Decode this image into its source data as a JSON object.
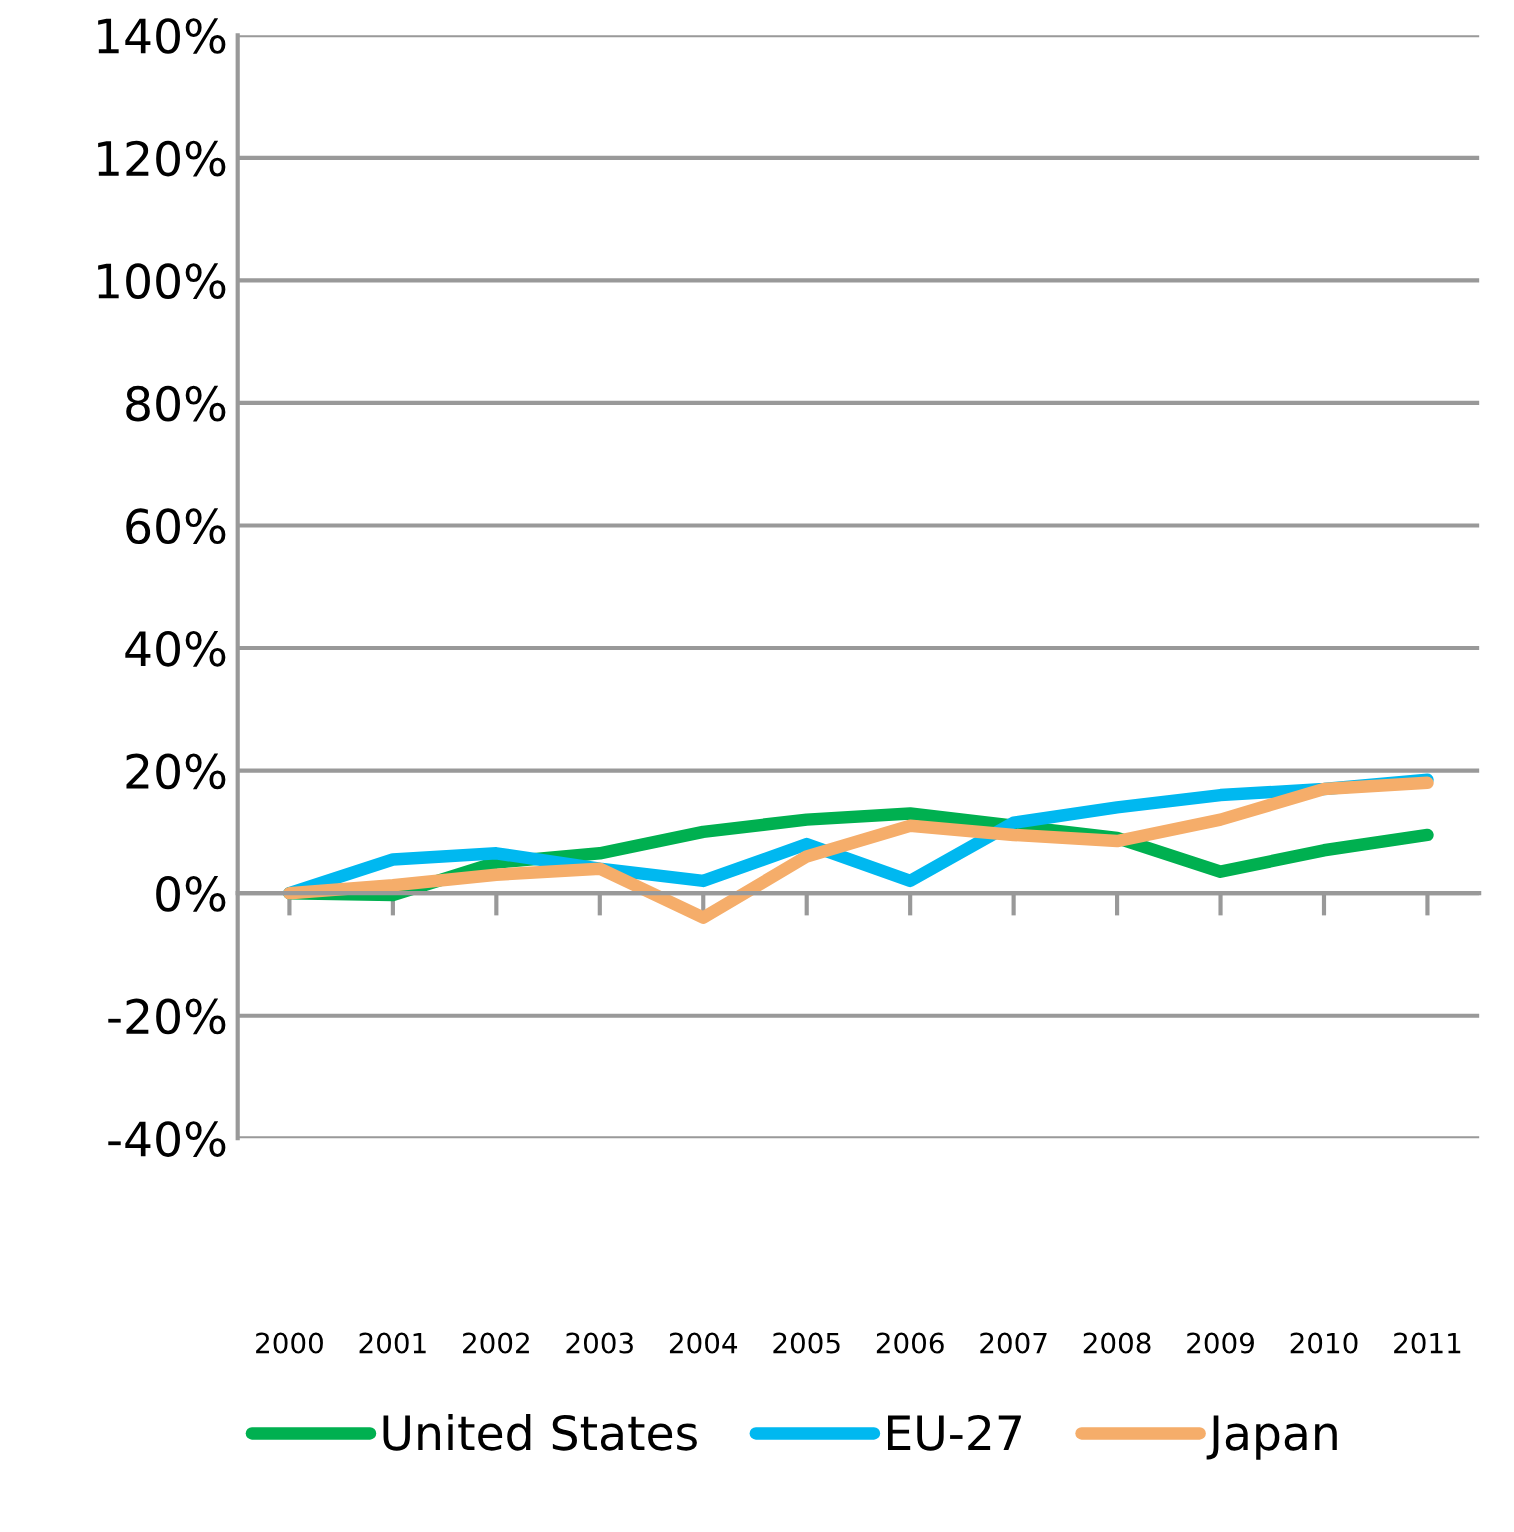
{
  "chart_data": {
    "type": "line",
    "categories": [
      "2000",
      "2001",
      "2002",
      "2003",
      "2004",
      "2005",
      "2006",
      "2007",
      "2008",
      "2009",
      "2010",
      "2011"
    ],
    "series": [
      {
        "name": "United States",
        "color": "#00b050",
        "values": [
          0,
          -0.3,
          5,
          6.5,
          10,
          12,
          13,
          11,
          9,
          3.5,
          7,
          9.5
        ]
      },
      {
        "name": "EU-27",
        "color": "#00b8f0",
        "values": [
          0,
          5.5,
          6.5,
          4,
          2,
          8,
          2,
          11.5,
          14,
          16,
          17,
          18.5
        ]
      },
      {
        "name": "Japan",
        "color": "#f5ad6a",
        "values": [
          0,
          1.3,
          3,
          4,
          -4,
          6,
          11,
          9.5,
          8.5,
          12,
          17,
          18
        ]
      }
    ],
    "ylim": [
      -40,
      140
    ],
    "yticks": [
      {
        "value": -40,
        "label": "-40%"
      },
      {
        "value": -20,
        "label": "-20%"
      },
      {
        "value": 0,
        "label": "0%"
      },
      {
        "value": 20,
        "label": "20%"
      },
      {
        "value": 40,
        "label": "40%"
      },
      {
        "value": 60,
        "label": "60%"
      },
      {
        "value": 80,
        "label": "80%"
      },
      {
        "value": 100,
        "label": "100%"
      },
      {
        "value": 120,
        "label": "120%"
      },
      {
        "value": 140,
        "label": "140%"
      }
    ],
    "grid": "y",
    "legend": "bottom",
    "marker": "none",
    "line_style": "solid"
  }
}
